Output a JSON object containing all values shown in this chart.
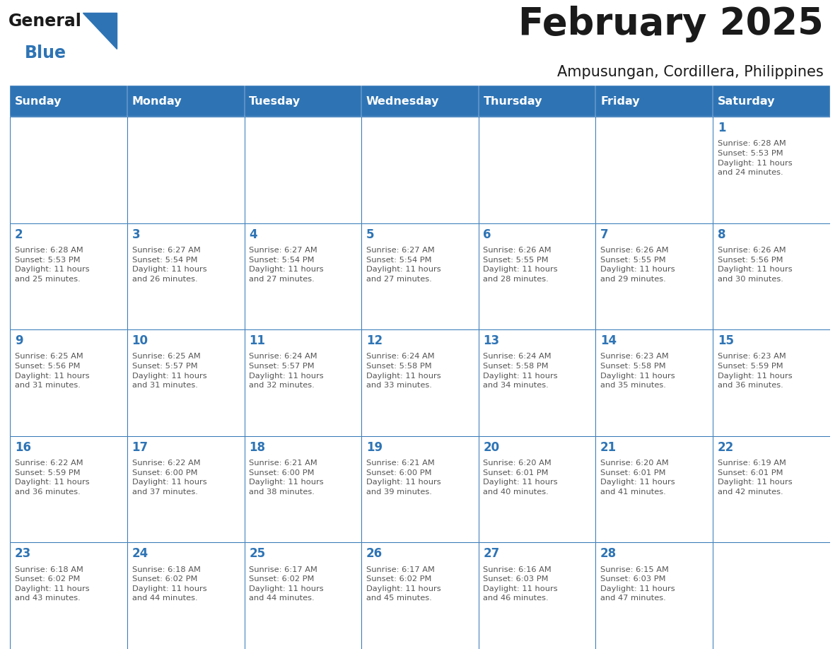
{
  "title": "February 2025",
  "subtitle": "Ampusungan, Cordillera, Philippines",
  "days_of_week": [
    "Sunday",
    "Monday",
    "Tuesday",
    "Wednesday",
    "Thursday",
    "Friday",
    "Saturday"
  ],
  "header_color": "#2E74B5",
  "header_text_color": "#FFFFFF",
  "cell_bg_color": "#FFFFFF",
  "border_color": "#2E74B5",
  "day_num_color": "#2E74B5",
  "text_color": "#555555",
  "title_color": "#1A1A1A",
  "subtitle_color": "#1A1A1A",
  "logo_general_color": "#1A1A1A",
  "logo_blue_color": "#2E74B5",
  "calendar": [
    [
      {
        "day": null,
        "info": null
      },
      {
        "day": null,
        "info": null
      },
      {
        "day": null,
        "info": null
      },
      {
        "day": null,
        "info": null
      },
      {
        "day": null,
        "info": null
      },
      {
        "day": null,
        "info": null
      },
      {
        "day": 1,
        "info": "Sunrise: 6:28 AM\nSunset: 5:53 PM\nDaylight: 11 hours\nand 24 minutes."
      }
    ],
    [
      {
        "day": 2,
        "info": "Sunrise: 6:28 AM\nSunset: 5:53 PM\nDaylight: 11 hours\nand 25 minutes."
      },
      {
        "day": 3,
        "info": "Sunrise: 6:27 AM\nSunset: 5:54 PM\nDaylight: 11 hours\nand 26 minutes."
      },
      {
        "day": 4,
        "info": "Sunrise: 6:27 AM\nSunset: 5:54 PM\nDaylight: 11 hours\nand 27 minutes."
      },
      {
        "day": 5,
        "info": "Sunrise: 6:27 AM\nSunset: 5:54 PM\nDaylight: 11 hours\nand 27 minutes."
      },
      {
        "day": 6,
        "info": "Sunrise: 6:26 AM\nSunset: 5:55 PM\nDaylight: 11 hours\nand 28 minutes."
      },
      {
        "day": 7,
        "info": "Sunrise: 6:26 AM\nSunset: 5:55 PM\nDaylight: 11 hours\nand 29 minutes."
      },
      {
        "day": 8,
        "info": "Sunrise: 6:26 AM\nSunset: 5:56 PM\nDaylight: 11 hours\nand 30 minutes."
      }
    ],
    [
      {
        "day": 9,
        "info": "Sunrise: 6:25 AM\nSunset: 5:56 PM\nDaylight: 11 hours\nand 31 minutes."
      },
      {
        "day": 10,
        "info": "Sunrise: 6:25 AM\nSunset: 5:57 PM\nDaylight: 11 hours\nand 31 minutes."
      },
      {
        "day": 11,
        "info": "Sunrise: 6:24 AM\nSunset: 5:57 PM\nDaylight: 11 hours\nand 32 minutes."
      },
      {
        "day": 12,
        "info": "Sunrise: 6:24 AM\nSunset: 5:58 PM\nDaylight: 11 hours\nand 33 minutes."
      },
      {
        "day": 13,
        "info": "Sunrise: 6:24 AM\nSunset: 5:58 PM\nDaylight: 11 hours\nand 34 minutes."
      },
      {
        "day": 14,
        "info": "Sunrise: 6:23 AM\nSunset: 5:58 PM\nDaylight: 11 hours\nand 35 minutes."
      },
      {
        "day": 15,
        "info": "Sunrise: 6:23 AM\nSunset: 5:59 PM\nDaylight: 11 hours\nand 36 minutes."
      }
    ],
    [
      {
        "day": 16,
        "info": "Sunrise: 6:22 AM\nSunset: 5:59 PM\nDaylight: 11 hours\nand 36 minutes."
      },
      {
        "day": 17,
        "info": "Sunrise: 6:22 AM\nSunset: 6:00 PM\nDaylight: 11 hours\nand 37 minutes."
      },
      {
        "day": 18,
        "info": "Sunrise: 6:21 AM\nSunset: 6:00 PM\nDaylight: 11 hours\nand 38 minutes."
      },
      {
        "day": 19,
        "info": "Sunrise: 6:21 AM\nSunset: 6:00 PM\nDaylight: 11 hours\nand 39 minutes."
      },
      {
        "day": 20,
        "info": "Sunrise: 6:20 AM\nSunset: 6:01 PM\nDaylight: 11 hours\nand 40 minutes."
      },
      {
        "day": 21,
        "info": "Sunrise: 6:20 AM\nSunset: 6:01 PM\nDaylight: 11 hours\nand 41 minutes."
      },
      {
        "day": 22,
        "info": "Sunrise: 6:19 AM\nSunset: 6:01 PM\nDaylight: 11 hours\nand 42 minutes."
      }
    ],
    [
      {
        "day": 23,
        "info": "Sunrise: 6:18 AM\nSunset: 6:02 PM\nDaylight: 11 hours\nand 43 minutes."
      },
      {
        "day": 24,
        "info": "Sunrise: 6:18 AM\nSunset: 6:02 PM\nDaylight: 11 hours\nand 44 minutes."
      },
      {
        "day": 25,
        "info": "Sunrise: 6:17 AM\nSunset: 6:02 PM\nDaylight: 11 hours\nand 44 minutes."
      },
      {
        "day": 26,
        "info": "Sunrise: 6:17 AM\nSunset: 6:02 PM\nDaylight: 11 hours\nand 45 minutes."
      },
      {
        "day": 27,
        "info": "Sunrise: 6:16 AM\nSunset: 6:03 PM\nDaylight: 11 hours\nand 46 minutes."
      },
      {
        "day": 28,
        "info": "Sunrise: 6:15 AM\nSunset: 6:03 PM\nDaylight: 11 hours\nand 47 minutes."
      },
      {
        "day": null,
        "info": null
      }
    ]
  ]
}
